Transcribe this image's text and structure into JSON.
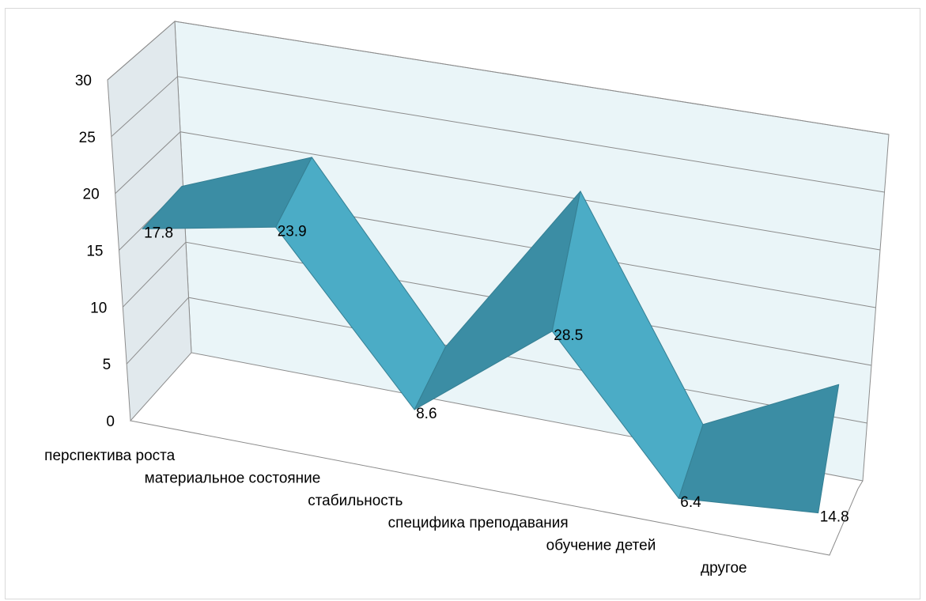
{
  "chart_data": {
    "type": "line",
    "style": "3d-ribbon",
    "categories": [
      "перспектива роста",
      "материальное состояние",
      "стабильность",
      "специфика преподавания",
      "обучение детей",
      "другое"
    ],
    "series": [
      {
        "values": [
          17.8,
          23.9,
          8.6,
          28.5,
          6.4,
          14.8
        ]
      }
    ],
    "data_labels": [
      "17.8",
      "23.9",
      "8.6",
      "28.5",
      "6.4",
      "14.8"
    ],
    "y_ticks": [
      "0",
      "5",
      "10",
      "15",
      "20",
      "25",
      "30"
    ],
    "ylim": [
      0,
      30
    ],
    "grid": true,
    "legend": "none",
    "colors": {
      "ribbon_front": "#4bacc6",
      "ribbon_top": "#3b8da4",
      "ribbon_edge": "#357f93",
      "back_wall": "#eaf5f8",
      "side_wall": "#e1e9ed",
      "grid": "#8c8c8c"
    }
  }
}
